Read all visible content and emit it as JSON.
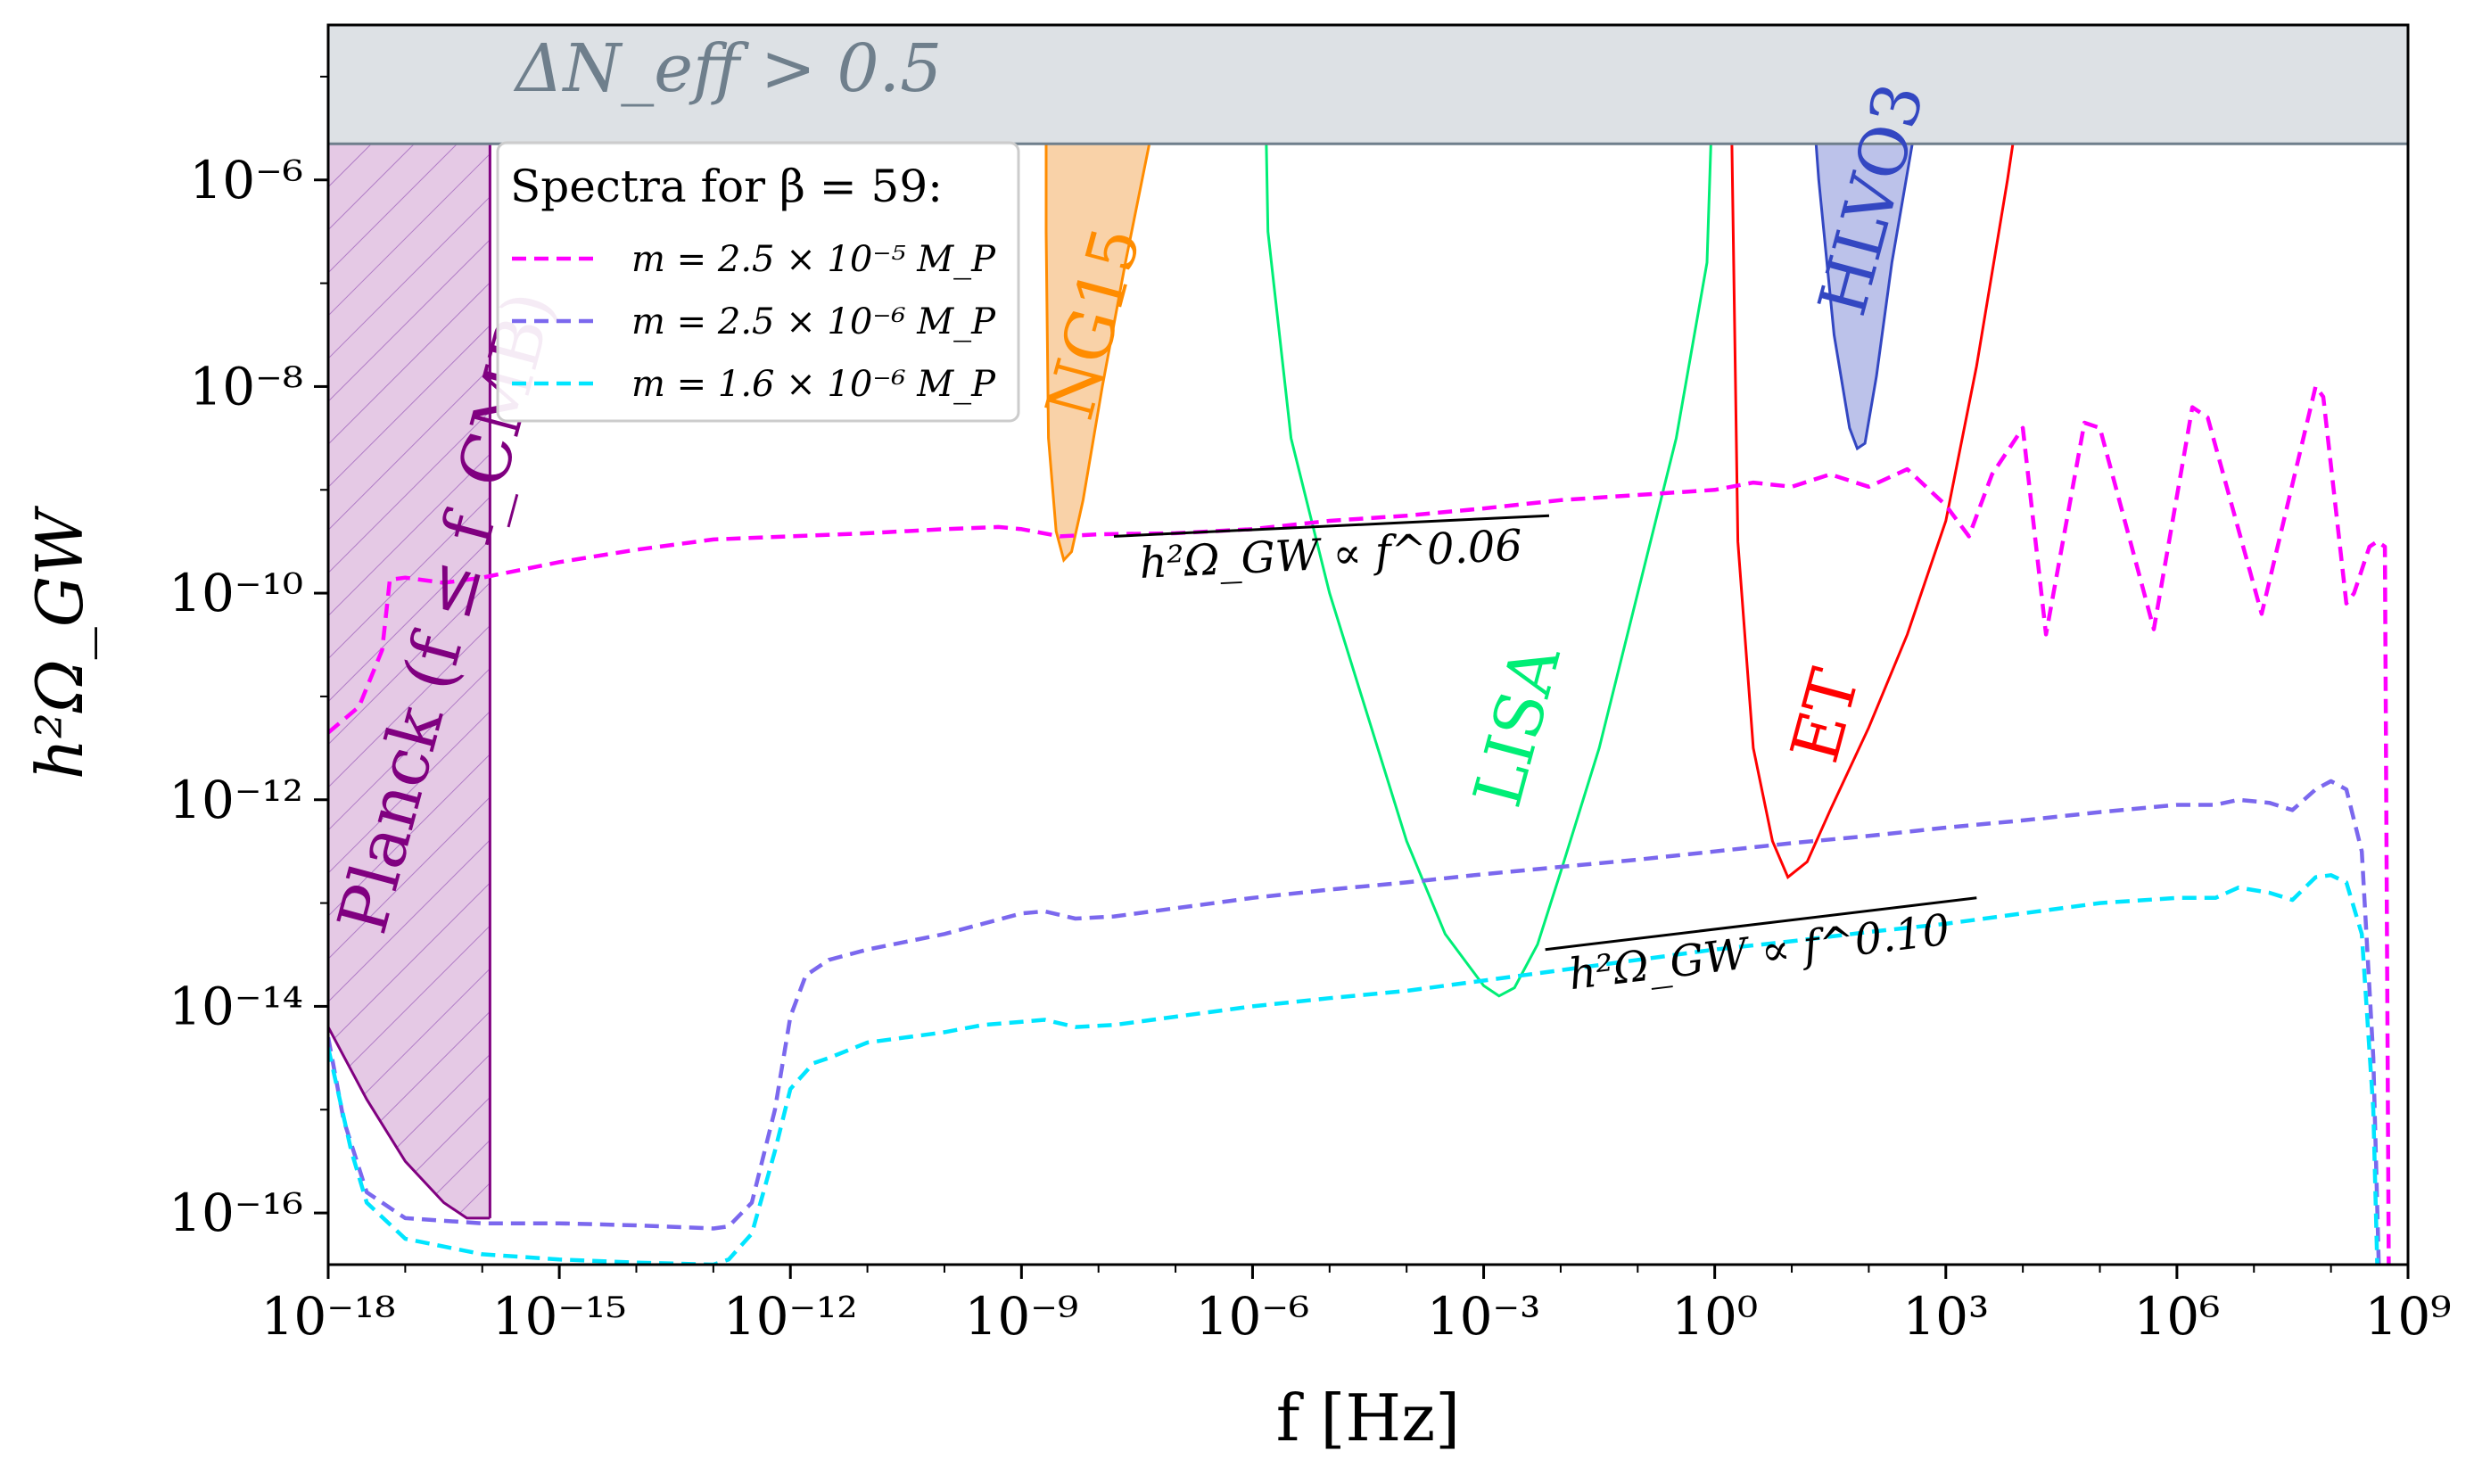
{
  "chart_data": {
    "type": "line",
    "xlabel": "f [Hz]",
    "ylabel": "h²Ω_GW",
    "xscale": "log10",
    "yscale": "log10",
    "xlim": [
      -18,
      9
    ],
    "ylim": [
      -16.5,
      -4.5
    ],
    "x_ticks": [
      {
        "value": -18,
        "label": "10⁻¹⁸"
      },
      {
        "value": -15,
        "label": "10⁻¹⁵"
      },
      {
        "value": -12,
        "label": "10⁻¹²"
      },
      {
        "value": -9,
        "label": "10⁻⁹"
      },
      {
        "value": -6,
        "label": "10⁻⁶"
      },
      {
        "value": -3,
        "label": "10⁻³"
      },
      {
        "value": 0,
        "label": "10⁰"
      },
      {
        "value": 3,
        "label": "10³"
      },
      {
        "value": 6,
        "label": "10⁶"
      },
      {
        "value": 9,
        "label": "10⁹"
      }
    ],
    "y_ticks": [
      {
        "value": -16,
        "label": "10⁻¹⁶"
      },
      {
        "value": -14,
        "label": "10⁻¹⁴"
      },
      {
        "value": -12,
        "label": "10⁻¹²"
      },
      {
        "value": -10,
        "label": "10⁻¹⁰"
      },
      {
        "value": -8,
        "label": "10⁻⁸"
      },
      {
        "value": -6,
        "label": "10⁻⁶"
      }
    ],
    "legend": {
      "title": "Spectra for β = 59:",
      "position": "top-left",
      "entries": [
        {
          "label": "m = 2.5 × 10⁻⁵ M_P",
          "series": 0
        },
        {
          "label": "m = 2.5 × 10⁻⁶ M_P",
          "series": 1
        },
        {
          "label": "m = 1.6 × 10⁻⁶ M_P",
          "series": 2
        }
      ]
    },
    "series": [
      {
        "name": "m = 2.5 × 10⁻⁵ M_P",
        "color": "#ff00ff",
        "style": "dashed",
        "points": [
          [
            -18,
            -11.35
          ],
          [
            -17.6,
            -11.1
          ],
          [
            -17.3,
            -10.55
          ],
          [
            -17.2,
            -9.87
          ],
          [
            -17.0,
            -9.85
          ],
          [
            -16.5,
            -9.9
          ],
          [
            -16.0,
            -9.85
          ],
          [
            -15.0,
            -9.7
          ],
          [
            -14.0,
            -9.58
          ],
          [
            -13.0,
            -9.48
          ],
          [
            -12.0,
            -9.45
          ],
          [
            -11.0,
            -9.42
          ],
          [
            -10.0,
            -9.38
          ],
          [
            -9.3,
            -9.36
          ],
          [
            -9.0,
            -9.38
          ],
          [
            -8.5,
            -9.45
          ],
          [
            -8.0,
            -9.43
          ],
          [
            -7.0,
            -9.42
          ],
          [
            -6.0,
            -9.38
          ],
          [
            -5.0,
            -9.3
          ],
          [
            -4.0,
            -9.25
          ],
          [
            -3.0,
            -9.18
          ],
          [
            -2.0,
            -9.1
          ],
          [
            -1.0,
            -9.05
          ],
          [
            0.0,
            -9.0
          ],
          [
            0.5,
            -8.93
          ],
          [
            1.0,
            -8.97
          ],
          [
            1.5,
            -8.85
          ],
          [
            2.0,
            -8.97
          ],
          [
            2.5,
            -8.8
          ],
          [
            3.0,
            -9.15
          ],
          [
            3.3,
            -9.45
          ],
          [
            3.6,
            -8.85
          ],
          [
            4.0,
            -8.4
          ],
          [
            4.3,
            -10.4
          ],
          [
            4.8,
            -8.35
          ],
          [
            5.0,
            -8.4
          ],
          [
            5.7,
            -10.35
          ],
          [
            6.2,
            -8.2
          ],
          [
            6.4,
            -8.3
          ],
          [
            7.1,
            -10.2
          ],
          [
            7.8,
            -8.0
          ],
          [
            7.9,
            -8.1
          ],
          [
            8.2,
            -10.1
          ],
          [
            8.3,
            -10.0
          ],
          [
            8.5,
            -9.55
          ],
          [
            8.6,
            -9.5
          ],
          [
            8.7,
            -9.55
          ],
          [
            8.75,
            -16.5
          ]
        ]
      },
      {
        "name": "m = 2.5 × 10⁻⁶ M_P",
        "color": "#7b68ee",
        "style": "dashed",
        "points": [
          [
            -18,
            -14.3
          ],
          [
            -17.8,
            -15.1
          ],
          [
            -17.5,
            -15.8
          ],
          [
            -17.0,
            -16.05
          ],
          [
            -16.0,
            -16.1
          ],
          [
            -15.0,
            -16.1
          ],
          [
            -14.0,
            -16.12
          ],
          [
            -13.0,
            -16.15
          ],
          [
            -12.8,
            -16.13
          ],
          [
            -12.5,
            -15.9
          ],
          [
            -12.2,
            -15.0
          ],
          [
            -12.0,
            -14.1
          ],
          [
            -11.8,
            -13.7
          ],
          [
            -11.5,
            -13.55
          ],
          [
            -11.0,
            -13.45
          ],
          [
            -10.0,
            -13.3
          ],
          [
            -9.5,
            -13.2
          ],
          [
            -9.0,
            -13.1
          ],
          [
            -8.7,
            -13.08
          ],
          [
            -8.3,
            -13.15
          ],
          [
            -7.8,
            -13.13
          ],
          [
            -7.0,
            -13.05
          ],
          [
            -6.0,
            -12.95
          ],
          [
            -5.0,
            -12.87
          ],
          [
            -4.0,
            -12.8
          ],
          [
            -3.0,
            -12.72
          ],
          [
            -2.0,
            -12.65
          ],
          [
            -1.0,
            -12.58
          ],
          [
            0.0,
            -12.5
          ],
          [
            1.0,
            -12.42
          ],
          [
            2.0,
            -12.35
          ],
          [
            3.0,
            -12.27
          ],
          [
            4.0,
            -12.2
          ],
          [
            5.0,
            -12.12
          ],
          [
            6.0,
            -12.05
          ],
          [
            6.5,
            -12.05
          ],
          [
            6.8,
            -12.0
          ],
          [
            7.2,
            -12.03
          ],
          [
            7.5,
            -12.1
          ],
          [
            7.8,
            -11.9
          ],
          [
            8.0,
            -11.82
          ],
          [
            8.2,
            -11.9
          ],
          [
            8.4,
            -12.5
          ],
          [
            8.55,
            -14.5
          ],
          [
            8.62,
            -16.5
          ]
        ]
      },
      {
        "name": "m = 1.6 × 10⁻⁶ M_P",
        "color": "#00e5ff",
        "style": "dashed",
        "points": [
          [
            -18,
            -14.4
          ],
          [
            -17.7,
            -15.4
          ],
          [
            -17.5,
            -15.9
          ],
          [
            -17.0,
            -16.25
          ],
          [
            -16.0,
            -16.4
          ],
          [
            -15.0,
            -16.45
          ],
          [
            -14.0,
            -16.48
          ],
          [
            -13.0,
            -16.5
          ],
          [
            -12.8,
            -16.45
          ],
          [
            -12.5,
            -16.2
          ],
          [
            -12.2,
            -15.4
          ],
          [
            -12.0,
            -14.8
          ],
          [
            -11.7,
            -14.55
          ],
          [
            -11.5,
            -14.5
          ],
          [
            -11.0,
            -14.35
          ],
          [
            -10.0,
            -14.25
          ],
          [
            -9.5,
            -14.18
          ],
          [
            -9.0,
            -14.15
          ],
          [
            -8.7,
            -14.13
          ],
          [
            -8.3,
            -14.2
          ],
          [
            -7.8,
            -14.18
          ],
          [
            -7.0,
            -14.1
          ],
          [
            -6.0,
            -14.0
          ],
          [
            -5.0,
            -13.92
          ],
          [
            -4.0,
            -13.85
          ],
          [
            -3.0,
            -13.75
          ],
          [
            -2.0,
            -13.65
          ],
          [
            -1.0,
            -13.55
          ],
          [
            0.0,
            -13.45
          ],
          [
            1.0,
            -13.37
          ],
          [
            2.0,
            -13.28
          ],
          [
            3.0,
            -13.2
          ],
          [
            4.0,
            -13.1
          ],
          [
            5.0,
            -13.0
          ],
          [
            6.0,
            -12.95
          ],
          [
            6.5,
            -12.95
          ],
          [
            6.8,
            -12.85
          ],
          [
            7.2,
            -12.9
          ],
          [
            7.5,
            -12.97
          ],
          [
            7.8,
            -12.75
          ],
          [
            8.0,
            -12.73
          ],
          [
            8.2,
            -12.8
          ],
          [
            8.4,
            -13.3
          ],
          [
            8.55,
            -15.0
          ],
          [
            8.6,
            -16.5
          ]
        ]
      }
    ],
    "sensitivity_regions": [
      {
        "name": "NG15",
        "label": "NG15",
        "color": "#ff8c00",
        "fill": "#f9d2a8",
        "points": [
          [
            -8.68,
            -4.5
          ],
          [
            -8.68,
            -6.5
          ],
          [
            -8.65,
            -8.5
          ],
          [
            -8.55,
            -9.4
          ],
          [
            -8.45,
            -9.68
          ],
          [
            -8.35,
            -9.6
          ],
          [
            -8.2,
            -9.1
          ],
          [
            -7.95,
            -8.0
          ],
          [
            -7.65,
            -6.8
          ],
          [
            -7.3,
            -5.5
          ],
          [
            -7.0,
            -4.5
          ]
        ]
      },
      {
        "name": "LISA",
        "label": "LISA",
        "color": "#00ee76",
        "fill": "none",
        "points": [
          [
            -5.85,
            -4.5
          ],
          [
            -5.8,
            -6.5
          ],
          [
            -5.5,
            -8.5
          ],
          [
            -5.0,
            -10.0
          ],
          [
            -4.5,
            -11.2
          ],
          [
            -4.0,
            -12.4
          ],
          [
            -3.5,
            -13.3
          ],
          [
            -3.0,
            -13.8
          ],
          [
            -2.8,
            -13.9
          ],
          [
            -2.6,
            -13.82
          ],
          [
            -2.3,
            -13.4
          ],
          [
            -2.0,
            -12.7
          ],
          [
            -1.5,
            -11.5
          ],
          [
            -1.0,
            -10.0
          ],
          [
            -0.5,
            -8.5
          ],
          [
            -0.1,
            -6.8
          ],
          [
            0.0,
            -4.5
          ]
        ]
      },
      {
        "name": "ET",
        "label": "ET",
        "color": "#ff0000",
        "fill": "none",
        "points": [
          [
            0.2,
            -4.5
          ],
          [
            0.3,
            -9.5
          ],
          [
            0.5,
            -11.5
          ],
          [
            0.75,
            -12.4
          ],
          [
            0.95,
            -12.75
          ],
          [
            1.2,
            -12.6
          ],
          [
            1.5,
            -12.1
          ],
          [
            2.0,
            -11.3
          ],
          [
            2.5,
            -10.4
          ],
          [
            3.0,
            -9.3
          ],
          [
            3.4,
            -7.8
          ],
          [
            3.8,
            -6.0
          ],
          [
            4.1,
            -4.5
          ]
        ]
      },
      {
        "name": "HLVO3",
        "label": "HLVO3",
        "color": "#3347c2",
        "fill": "#bcc2ea",
        "points": [
          [
            1.2,
            -4.5
          ],
          [
            1.35,
            -6.0
          ],
          [
            1.55,
            -7.5
          ],
          [
            1.75,
            -8.4
          ],
          [
            1.85,
            -8.6
          ],
          [
            1.95,
            -8.55
          ],
          [
            2.1,
            -7.9
          ],
          [
            2.3,
            -6.8
          ],
          [
            2.6,
            -5.5
          ],
          [
            2.9,
            -4.5
          ]
        ]
      },
      {
        "name": "Planck",
        "label": "Planck (f ≤ f_CMB)",
        "color": "#800080",
        "fill": "#e0bfe0",
        "hatched": true,
        "x_range": [
          -18,
          -15.9
        ],
        "lower_curve": [
          [
            -18,
            -14.2
          ],
          [
            -17.5,
            -14.9
          ],
          [
            -17.0,
            -15.5
          ],
          [
            -16.5,
            -15.9
          ],
          [
            -16.2,
            -16.05
          ],
          [
            -15.9,
            -16.05
          ]
        ]
      },
      {
        "name": "DeltaNeff",
        "label": "ΔN_eff > 0.5",
        "color": "#6f7f8c",
        "fill": "#dde1e5",
        "y_min": -5.65
      }
    ],
    "annotations": [
      {
        "text": "h²Ω_GW ∝ f^0.06",
        "slope": 0.06,
        "line": [
          [
            -7.8,
            -9.45
          ],
          [
            -2.15,
            -9.25
          ]
        ]
      },
      {
        "text": "h²Ω_GW ∝ f^0.10",
        "slope": 0.1,
        "line": [
          [
            -2.2,
            -13.45
          ],
          [
            3.4,
            -12.95
          ]
        ]
      }
    ]
  }
}
